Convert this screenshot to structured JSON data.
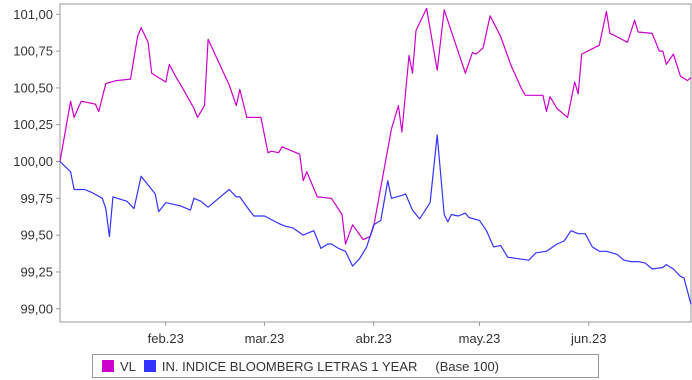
{
  "chart_data": {
    "type": "line",
    "xlabel": "",
    "ylabel": "",
    "x_tick_labels": [
      "feb.23",
      "mar.23",
      "abr.23",
      "may.23",
      "jun.23"
    ],
    "y_tick_labels": [
      "101,00",
      "100,75",
      "100,50",
      "100,25",
      "100,00",
      "99,75",
      "99,50",
      "99,25",
      "99,00"
    ],
    "y_ticks": [
      101.0,
      100.75,
      100.5,
      100.25,
      100.0,
      99.75,
      99.5,
      99.25,
      99.0
    ],
    "ylim": [
      98.91,
      101.07
    ],
    "x_domain": [
      "2023-01-02",
      "2023-06-30"
    ],
    "x_ticks": [
      "2023-02-01",
      "2023-03-01",
      "2023-04-01",
      "2023-05-01",
      "2023-06-01"
    ],
    "grid": false,
    "legend_position": "bottom",
    "legend_note": "(Base 100)",
    "series": [
      {
        "name": "VL",
        "color": "#cc00cc",
        "points": [
          [
            "2023-01-02",
            100.0
          ],
          [
            "2023-01-05",
            100.41
          ],
          [
            "2023-01-06",
            100.3
          ],
          [
            "2023-01-08",
            100.41
          ],
          [
            "2023-01-12",
            100.39
          ],
          [
            "2023-01-13",
            100.34
          ],
          [
            "2023-01-15",
            100.53
          ],
          [
            "2023-01-18",
            100.55
          ],
          [
            "2023-01-22",
            100.56
          ],
          [
            "2023-01-24",
            100.85
          ],
          [
            "2023-01-25",
            100.91
          ],
          [
            "2023-01-27",
            100.81
          ],
          [
            "2023-01-28",
            100.6
          ],
          [
            "2023-02-01",
            100.54
          ],
          [
            "2023-02-02",
            100.66
          ],
          [
            "2023-02-04",
            100.57
          ],
          [
            "2023-02-06",
            100.49
          ],
          [
            "2023-02-09",
            100.36
          ],
          [
            "2023-02-10",
            100.3
          ],
          [
            "2023-02-12",
            100.38
          ],
          [
            "2023-02-13",
            100.83
          ],
          [
            "2023-02-19",
            100.52
          ],
          [
            "2023-02-21",
            100.38
          ],
          [
            "2023-02-22",
            100.49
          ],
          [
            "2023-02-24",
            100.3
          ],
          [
            "2023-02-28",
            100.3
          ],
          [
            "2023-03-02",
            100.06
          ],
          [
            "2023-03-03",
            100.07
          ],
          [
            "2023-03-05",
            100.06
          ],
          [
            "2023-03-06",
            100.1
          ],
          [
            "2023-03-11",
            100.05
          ],
          [
            "2023-03-12",
            99.87
          ],
          [
            "2023-03-13",
            99.93
          ],
          [
            "2023-03-16",
            99.76
          ],
          [
            "2023-03-20",
            99.75
          ],
          [
            "2023-03-23",
            99.64
          ],
          [
            "2023-03-24",
            99.44
          ],
          [
            "2023-03-26",
            99.57
          ],
          [
            "2023-03-29",
            99.47
          ],
          [
            "2023-03-31",
            99.49
          ],
          [
            "2023-04-01",
            99.56
          ],
          [
            "2023-04-06",
            100.22
          ],
          [
            "2023-04-08",
            100.38
          ],
          [
            "2023-04-09",
            100.2
          ],
          [
            "2023-04-11",
            100.72
          ],
          [
            "2023-04-12",
            100.6
          ],
          [
            "2023-04-13",
            100.89
          ],
          [
            "2023-04-16",
            101.04
          ],
          [
            "2023-04-19",
            100.62
          ],
          [
            "2023-04-21",
            101.03
          ],
          [
            "2023-04-27",
            100.6
          ],
          [
            "2023-04-29",
            100.74
          ],
          [
            "2023-04-30",
            100.73
          ],
          [
            "2023-05-02",
            100.77
          ],
          [
            "2023-05-04",
            100.99
          ],
          [
            "2023-05-07",
            100.85
          ],
          [
            "2023-05-10",
            100.65
          ],
          [
            "2023-05-13",
            100.49
          ],
          [
            "2023-05-14",
            100.45
          ],
          [
            "2023-05-19",
            100.45
          ],
          [
            "2023-05-20",
            100.34
          ],
          [
            "2023-05-21",
            100.44
          ],
          [
            "2023-05-23",
            100.36
          ],
          [
            "2023-05-26",
            100.3
          ],
          [
            "2023-05-28",
            100.54
          ],
          [
            "2023-05-29",
            100.46
          ],
          [
            "2023-05-30",
            100.73
          ],
          [
            "2023-06-04",
            100.79
          ],
          [
            "2023-06-06",
            101.02
          ],
          [
            "2023-06-07",
            100.87
          ],
          [
            "2023-06-08",
            100.86
          ],
          [
            "2023-06-12",
            100.81
          ],
          [
            "2023-06-14",
            100.96
          ],
          [
            "2023-06-15",
            100.88
          ],
          [
            "2023-06-19",
            100.87
          ],
          [
            "2023-06-21",
            100.75
          ],
          [
            "2023-06-22",
            100.75
          ],
          [
            "2023-06-23",
            100.66
          ],
          [
            "2023-06-25",
            100.73
          ],
          [
            "2023-06-27",
            100.58
          ],
          [
            "2023-06-29",
            100.55
          ],
          [
            "2023-06-30",
            100.57
          ],
          [
            "2023-06-30",
            100.57
          ],
          [
            "2023-06-30",
            100.57
          ]
        ]
      },
      {
        "name": "IN. INDICE BLOOMBERG LETRAS 1 YEAR",
        "color": "#3333ff",
        "points": [
          [
            "2023-01-02",
            100.0
          ],
          [
            "2023-01-05",
            99.93
          ],
          [
            "2023-01-06",
            99.81
          ],
          [
            "2023-01-09",
            99.81
          ],
          [
            "2023-01-11",
            99.79
          ],
          [
            "2023-01-14",
            99.75
          ],
          [
            "2023-01-15",
            99.68
          ],
          [
            "2023-01-16",
            99.49
          ],
          [
            "2023-01-17",
            99.76
          ],
          [
            "2023-01-21",
            99.73
          ],
          [
            "2023-01-23",
            99.68
          ],
          [
            "2023-01-25",
            99.9
          ],
          [
            "2023-01-29",
            99.78
          ],
          [
            "2023-01-30",
            99.66
          ],
          [
            "2023-02-01",
            99.72
          ],
          [
            "2023-02-05",
            99.7
          ],
          [
            "2023-02-08",
            99.67
          ],
          [
            "2023-02-09",
            99.75
          ],
          [
            "2023-02-11",
            99.73
          ],
          [
            "2023-02-13",
            99.69
          ],
          [
            "2023-02-16",
            99.75
          ],
          [
            "2023-02-19",
            99.81
          ],
          [
            "2023-02-21",
            99.76
          ],
          [
            "2023-02-22",
            99.76
          ],
          [
            "2023-02-25",
            99.66
          ],
          [
            "2023-02-26",
            99.63
          ],
          [
            "2023-03-01",
            99.63
          ],
          [
            "2023-03-05",
            99.58
          ],
          [
            "2023-03-07",
            99.56
          ],
          [
            "2023-03-09",
            99.55
          ],
          [
            "2023-03-12",
            99.5
          ],
          [
            "2023-03-15",
            99.53
          ],
          [
            "2023-03-17",
            99.41
          ],
          [
            "2023-03-19",
            99.44
          ],
          [
            "2023-03-20",
            99.44
          ],
          [
            "2023-03-22",
            99.41
          ],
          [
            "2023-03-24",
            99.39
          ],
          [
            "2023-03-26",
            99.29
          ],
          [
            "2023-03-28",
            99.34
          ],
          [
            "2023-03-30",
            99.42
          ],
          [
            "2023-04-01",
            99.57
          ],
          [
            "2023-04-03",
            99.6
          ],
          [
            "2023-04-05",
            99.87
          ],
          [
            "2023-04-06",
            99.75
          ],
          [
            "2023-04-09",
            99.77
          ],
          [
            "2023-04-10",
            99.78
          ],
          [
            "2023-04-12",
            99.67
          ],
          [
            "2023-04-14",
            99.61
          ],
          [
            "2023-04-17",
            99.72
          ],
          [
            "2023-04-19",
            100.18
          ],
          [
            "2023-04-21",
            99.64
          ],
          [
            "2023-04-22",
            99.59
          ],
          [
            "2023-04-23",
            99.64
          ],
          [
            "2023-04-25",
            99.63
          ],
          [
            "2023-04-27",
            99.65
          ],
          [
            "2023-04-28",
            99.62
          ],
          [
            "2023-05-01",
            99.6
          ],
          [
            "2023-05-03",
            99.53
          ],
          [
            "2023-05-05",
            99.42
          ],
          [
            "2023-05-07",
            99.43
          ],
          [
            "2023-05-09",
            99.35
          ],
          [
            "2023-05-12",
            99.34
          ],
          [
            "2023-05-15",
            99.33
          ],
          [
            "2023-05-17",
            99.38
          ],
          [
            "2023-05-20",
            99.39
          ],
          [
            "2023-05-23",
            99.44
          ],
          [
            "2023-05-25",
            99.46
          ],
          [
            "2023-05-27",
            99.53
          ],
          [
            "2023-05-29",
            99.51
          ],
          [
            "2023-05-31",
            99.51
          ],
          [
            "2023-06-02",
            99.42
          ],
          [
            "2023-06-04",
            99.39
          ],
          [
            "2023-06-06",
            99.39
          ],
          [
            "2023-06-09",
            99.37
          ],
          [
            "2023-06-11",
            99.33
          ],
          [
            "2023-06-13",
            99.32
          ],
          [
            "2023-06-15",
            99.32
          ],
          [
            "2023-06-17",
            99.31
          ],
          [
            "2023-06-19",
            99.27
          ],
          [
            "2023-06-22",
            99.28
          ],
          [
            "2023-06-23",
            99.3
          ],
          [
            "2023-06-25",
            99.27
          ],
          [
            "2023-06-27",
            99.22
          ],
          [
            "2023-06-28",
            99.21
          ],
          [
            "2023-06-30",
            99.03
          ]
        ]
      }
    ]
  }
}
